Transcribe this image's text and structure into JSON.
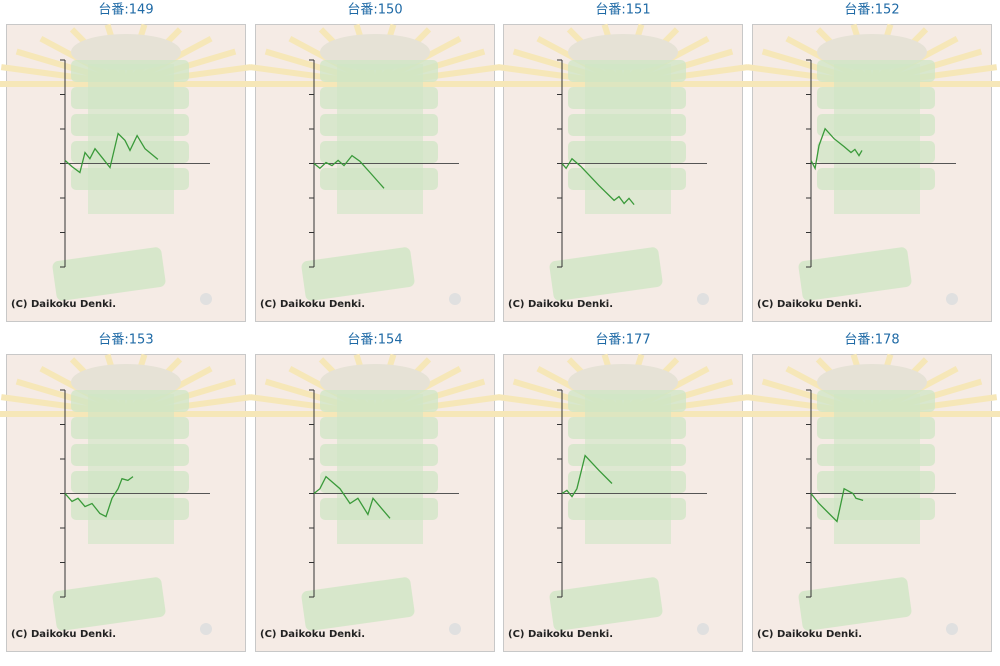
{
  "chart_data": [
    {
      "type": "line",
      "title": "台番:149",
      "caption": "(C) Daikoku Denki.",
      "color": "#3a9a3a",
      "xlim": [
        0,
        100
      ],
      "ylim": [
        -3,
        3
      ],
      "yticks": [
        -3,
        -2,
        -1,
        0,
        1,
        2,
        3
      ],
      "x": [
        0,
        4.8,
        10.3,
        13.8,
        17.2,
        20.7,
        26.2,
        31,
        36.6,
        41.4,
        44.8,
        49.7,
        55.2,
        64.1
      ],
      "values": [
        0.09,
        -0.09,
        -0.26,
        0.32,
        0.14,
        0.43,
        0.14,
        -0.12,
        0.87,
        0.67,
        0.38,
        0.81,
        0.43,
        0.12
      ]
    },
    {
      "type": "line",
      "title": "台番:150",
      "caption": "(C) Daikoku Denki.",
      "color": "#3a9a3a",
      "xlim": [
        0,
        100
      ],
      "ylim": [
        -3,
        3
      ],
      "yticks": [
        -3,
        -2,
        -1,
        0,
        1,
        2,
        3
      ],
      "x": [
        0,
        4.1,
        8.3,
        12.4,
        16.6,
        20.7,
        26.2,
        31.7,
        38.6,
        48.3
      ],
      "values": [
        0,
        -0.14,
        0.03,
        -0.06,
        0.09,
        -0.06,
        0.23,
        0.06,
        -0.26,
        -0.72
      ]
    },
    {
      "type": "line",
      "title": "台番:151",
      "caption": "(C) Daikoku Denki.",
      "color": "#3a9a3a",
      "xlim": [
        0,
        100
      ],
      "ylim": [
        -3,
        3
      ],
      "yticks": [
        -3,
        -2,
        -1,
        0,
        1,
        2,
        3
      ],
      "x": [
        0,
        2.8,
        6.9,
        13.1,
        25.5,
        35.9,
        39.3,
        42.8,
        46.2,
        49.7
      ],
      "values": [
        0,
        -0.14,
        0.14,
        -0.09,
        -0.64,
        -1.07,
        -0.96,
        -1.16,
        -1.01,
        -1.19
      ]
    },
    {
      "type": "line",
      "title": "台番:152",
      "caption": "(C) Daikoku Denki.",
      "color": "#3a9a3a",
      "xlim": [
        0,
        100
      ],
      "ylim": [
        -3,
        3
      ],
      "yticks": [
        -3,
        -2,
        -1,
        0,
        1,
        2,
        3
      ],
      "x": [
        0,
        2.8,
        5.5,
        9.7,
        15.9,
        22.8,
        27.6,
        30.3,
        33.1,
        35.2
      ],
      "values": [
        0.09,
        -0.14,
        0.52,
        1.01,
        0.72,
        0.49,
        0.32,
        0.41,
        0.23,
        0.38
      ]
    },
    {
      "type": "line",
      "title": "台番:153",
      "caption": "(C) Daikoku Denki.",
      "color": "#3a9a3a",
      "xlim": [
        0,
        100
      ],
      "ylim": [
        -3,
        3
      ],
      "yticks": [
        -3,
        -2,
        -1,
        0,
        1,
        2,
        3
      ],
      "x": [
        0,
        4.8,
        9,
        13.8,
        18.6,
        24.1,
        28.3,
        32.4,
        36.6,
        39.3,
        43.4,
        46.9
      ],
      "values": [
        0,
        -0.23,
        -0.14,
        -0.38,
        -0.29,
        -0.58,
        -0.67,
        -0.14,
        0.14,
        0.43,
        0.38,
        0.49
      ]
    },
    {
      "type": "line",
      "title": "台番:154",
      "caption": "(C) Daikoku Denki.",
      "color": "#3a9a3a",
      "xlim": [
        0,
        100
      ],
      "ylim": [
        -3,
        3
      ],
      "yticks": [
        -3,
        -2,
        -1,
        0,
        1,
        2,
        3
      ],
      "x": [
        0,
        4.1,
        8.3,
        17.9,
        24.8,
        30.3,
        37.2,
        40.7,
        45.5,
        52.4
      ],
      "values": [
        0,
        0.14,
        0.49,
        0.14,
        -0.29,
        -0.14,
        -0.61,
        -0.14,
        -0.38,
        -0.72
      ]
    },
    {
      "type": "line",
      "title": "台番:177",
      "caption": "(C) Daikoku Denki.",
      "color": "#3a9a3a",
      "xlim": [
        0,
        100
      ],
      "ylim": [
        -3,
        3
      ],
      "yticks": [
        -3,
        -2,
        -1,
        0,
        1,
        2,
        3
      ],
      "x": [
        0,
        3.4,
        6.9,
        10.3,
        15.9,
        25.5,
        34.5
      ],
      "values": [
        0,
        0.09,
        -0.09,
        0.14,
        1.1,
        0.67,
        0.29
      ]
    },
    {
      "type": "line",
      "title": "台番:178",
      "caption": "(C) Daikoku Denki.",
      "color": "#3a9a3a",
      "xlim": [
        0,
        100
      ],
      "ylim": [
        -3,
        3
      ],
      "yticks": [
        -3,
        -2,
        -1,
        0,
        1,
        2,
        3
      ],
      "x": [
        0,
        5.5,
        12.4,
        17.9,
        22.8,
        29,
        31,
        35.9
      ],
      "values": [
        0,
        -0.29,
        -0.58,
        -0.81,
        0.14,
        0,
        -0.14,
        -0.2
      ]
    }
  ]
}
